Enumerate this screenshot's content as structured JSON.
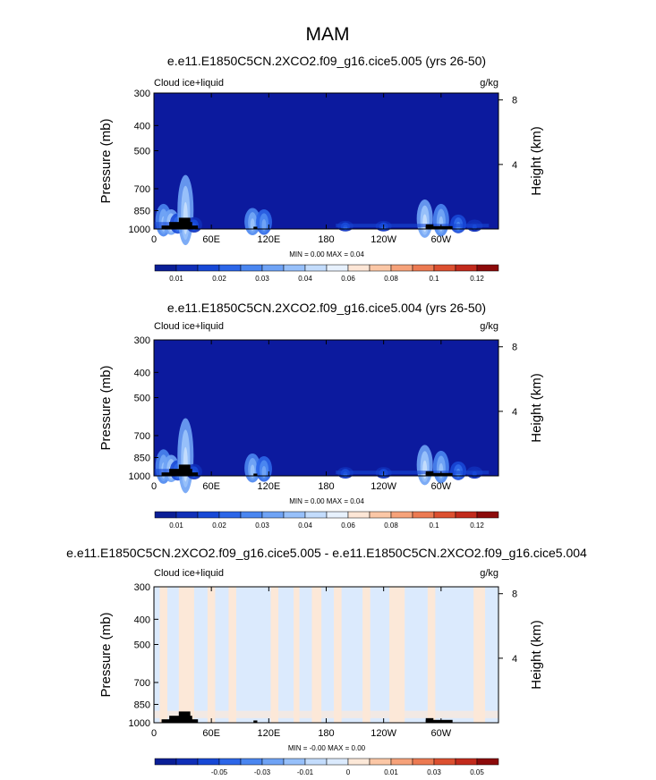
{
  "figure": {
    "title": "MAM"
  },
  "chart_data": [
    {
      "type": "heatmap",
      "title": "e.e11.E1850C5CN.2XCO2.f09_g16.cice5.005 (yrs 26-50)",
      "left_label": "Cloud ice+liquid",
      "right_label": "g/kg",
      "ylabel": "Pressure (mb)",
      "ylabel_right": "Height (km)",
      "xticks": [
        "0",
        "60E",
        "120E",
        "180",
        "120W",
        "60W"
      ],
      "xtick_lon": [
        0,
        60,
        120,
        180,
        240,
        300
      ],
      "xlim": [
        0,
        360
      ],
      "yticks": [
        "300",
        "400",
        "500",
        "700",
        "850",
        "1000"
      ],
      "ytick_p": [
        300,
        400,
        500,
        700,
        850,
        1000
      ],
      "ylim": [
        1000,
        300
      ],
      "log_pressure": true,
      "right_ticks": [
        "8",
        "4"
      ],
      "right_tick_km": [
        8,
        4
      ],
      "stats": "MIN =   0.00  MAX =   0.04",
      "colorbar": {
        "labels": [
          "0.01",
          "0.02",
          "0.03",
          "0.04",
          "0.06",
          "0.08",
          "0.1",
          "0.12"
        ],
        "colors": [
          "#0a1e96",
          "#102fb8",
          "#1748d6",
          "#2c66e8",
          "#4a86f0",
          "#6fa3f5",
          "#97c0fa",
          "#c3dcfc",
          "#e7f1fd",
          "#fde6d6",
          "#fbc7a6",
          "#f6a27a",
          "#ec7a52",
          "#dc5030",
          "#c22a1c",
          "#8c0a0a"
        ]
      },
      "background_color": "#0c1a9e",
      "features": [
        {
          "lon": 10,
          "p_top": 800,
          "value": 0.03
        },
        {
          "lon": 18,
          "p_top": 840,
          "value": 0.04
        },
        {
          "lon": 25,
          "p_top": 870,
          "value": 0.02
        },
        {
          "lon": 33,
          "p_top": 620,
          "value": 0.035
        },
        {
          "lon": 42,
          "p_top": 900,
          "value": 0.015
        },
        {
          "lon": 103,
          "p_top": 830,
          "value": 0.03
        },
        {
          "lon": 115,
          "p_top": 840,
          "value": 0.025
        },
        {
          "lon": 200,
          "p_top": 930,
          "value": 0.015
        },
        {
          "lon": 240,
          "p_top": 930,
          "value": 0.015
        },
        {
          "lon": 283,
          "p_top": 770,
          "value": 0.035
        },
        {
          "lon": 300,
          "p_top": 800,
          "value": 0.03
        },
        {
          "lon": 318,
          "p_top": 880,
          "value": 0.02
        },
        {
          "lon": 335,
          "p_top": 920,
          "value": 0.01
        }
      ]
    },
    {
      "type": "heatmap",
      "title": "e.e11.E1850C5CN.2XCO2.f09_g16.cice5.004 (yrs 26-50)",
      "left_label": "Cloud ice+liquid",
      "right_label": "g/kg",
      "ylabel": "Pressure (mb)",
      "ylabel_right": "Height (km)",
      "xticks": [
        "0",
        "60E",
        "120E",
        "180",
        "120W",
        "60W"
      ],
      "xtick_lon": [
        0,
        60,
        120,
        180,
        240,
        300
      ],
      "xlim": [
        0,
        360
      ],
      "yticks": [
        "300",
        "400",
        "500",
        "700",
        "850",
        "1000"
      ],
      "ytick_p": [
        300,
        400,
        500,
        700,
        850,
        1000
      ],
      "ylim": [
        1000,
        300
      ],
      "log_pressure": true,
      "right_ticks": [
        "8",
        "4"
      ],
      "right_tick_km": [
        8,
        4
      ],
      "stats": "MIN =   0.00  MAX =   0.04",
      "colorbar": {
        "labels": [
          "0.01",
          "0.02",
          "0.03",
          "0.04",
          "0.06",
          "0.08",
          "0.1",
          "0.12"
        ],
        "colors": [
          "#0a1e96",
          "#102fb8",
          "#1748d6",
          "#2c66e8",
          "#4a86f0",
          "#6fa3f5",
          "#97c0fa",
          "#c3dcfc",
          "#e7f1fd",
          "#fde6d6",
          "#fbc7a6",
          "#f6a27a",
          "#ec7a52",
          "#dc5030",
          "#c22a1c",
          "#8c0a0a"
        ]
      },
      "background_color": "#0c1a9e",
      "features": [
        {
          "lon": 10,
          "p_top": 790,
          "value": 0.03
        },
        {
          "lon": 18,
          "p_top": 830,
          "value": 0.04
        },
        {
          "lon": 25,
          "p_top": 870,
          "value": 0.02
        },
        {
          "lon": 33,
          "p_top": 600,
          "value": 0.035
        },
        {
          "lon": 42,
          "p_top": 900,
          "value": 0.015
        },
        {
          "lon": 103,
          "p_top": 820,
          "value": 0.03
        },
        {
          "lon": 115,
          "p_top": 840,
          "value": 0.025
        },
        {
          "lon": 200,
          "p_top": 925,
          "value": 0.015
        },
        {
          "lon": 240,
          "p_top": 925,
          "value": 0.015
        },
        {
          "lon": 283,
          "p_top": 760,
          "value": 0.035
        },
        {
          "lon": 300,
          "p_top": 800,
          "value": 0.03
        },
        {
          "lon": 318,
          "p_top": 880,
          "value": 0.02
        },
        {
          "lon": 335,
          "p_top": 920,
          "value": 0.01
        }
      ]
    },
    {
      "type": "heatmap",
      "title": "e.e11.E1850C5CN.2XCO2.f09_g16.cice5.005 - e.e11.E1850C5CN.2XCO2.f09_g16.cice5.004",
      "left_label": "Cloud ice+liquid",
      "right_label": "g/kg",
      "ylabel": "Pressure (mb)",
      "ylabel_right": "Height (km)",
      "xticks": [
        "0",
        "60E",
        "120E",
        "180",
        "120W",
        "60W"
      ],
      "xtick_lon": [
        0,
        60,
        120,
        180,
        240,
        300
      ],
      "xlim": [
        0,
        360
      ],
      "yticks": [
        "300",
        "400",
        "500",
        "700",
        "850",
        "1000"
      ],
      "ytick_p": [
        300,
        400,
        500,
        700,
        850,
        1000
      ],
      "ylim": [
        1000,
        300
      ],
      "log_pressure": true,
      "right_ticks": [
        "8",
        "4"
      ],
      "right_tick_km": [
        8,
        4
      ],
      "stats": "MIN =  -0.00  MAX =   0.00",
      "colorbar": {
        "labels": [
          "-0.05",
          "-0.03",
          "-0.01",
          "0",
          "0.01",
          "0.03",
          "0.05"
        ],
        "colors": [
          "#0a1e96",
          "#102fb8",
          "#1748d6",
          "#2c66e8",
          "#4a86f0",
          "#6fa3f5",
          "#97c0fa",
          "#c3dcfc",
          "#dbeafd",
          "#fce8d8",
          "#fbc7a6",
          "#f6a27a",
          "#ec7a52",
          "#dc5030",
          "#c22a1c",
          "#8c0a0a"
        ]
      },
      "background_color": "#dbeafd",
      "positive_color": "#fce8d8",
      "positive_lon_bands": [
        [
          6,
          14
        ],
        [
          26,
          42
        ],
        [
          56,
          64
        ],
        [
          78,
          86
        ],
        [
          122,
          130
        ],
        [
          146,
          152
        ],
        [
          165,
          175
        ],
        [
          188,
          196
        ],
        [
          218,
          226
        ],
        [
          246,
          262
        ],
        [
          286,
          294
        ],
        [
          334,
          346
        ]
      ]
    }
  ],
  "topography": {
    "color": "#000000",
    "blocks": [
      {
        "lon0": 8,
        "lon1": 46,
        "p_top": 970
      },
      {
        "lon0": 16,
        "lon1": 40,
        "p_top": 940
      },
      {
        "lon0": 26,
        "lon1": 38,
        "p_top": 905
      },
      {
        "lon0": 104,
        "lon1": 108,
        "p_top": 980
      },
      {
        "lon0": 284,
        "lon1": 312,
        "p_top": 975
      },
      {
        "lon0": 284,
        "lon1": 292,
        "p_top": 960
      }
    ]
  }
}
